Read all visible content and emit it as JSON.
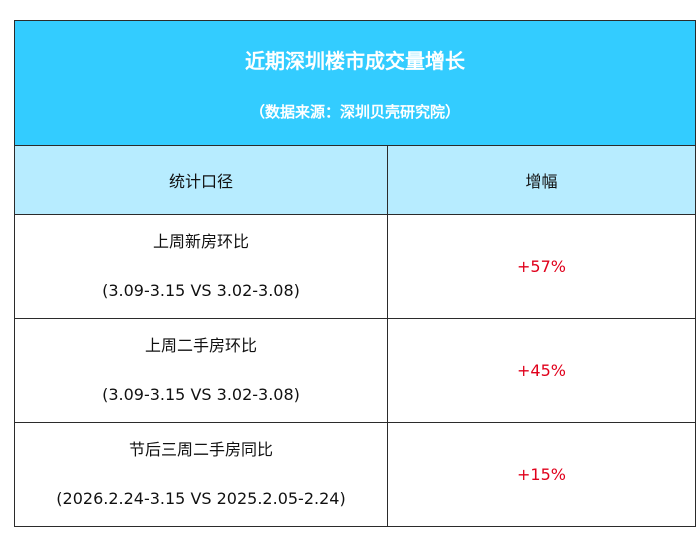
{
  "title": "近期深圳楼市成交量增长",
  "subtitle": "（数据来源：深圳贝壳研究院）",
  "columns": {
    "metric": "统计口径",
    "growth": "增幅"
  },
  "rows": [
    {
      "name": "上周新房环比",
      "period": "(3.09-3.15 VS 3.02-3.08)",
      "growth": "+57%"
    },
    {
      "name": "上周二手房环比",
      "period": "(3.09-3.15 VS 3.02-3.08)",
      "growth": "+45%"
    },
    {
      "name": "节后三周二手房同比",
      "period": "(2026.2.24-3.15 VS 2025.2.05-2.24)",
      "growth": "+15%"
    }
  ],
  "colors": {
    "title_bg": "#33ccff",
    "header_bg": "#b7ecff",
    "growth_text": "#e0001b"
  }
}
